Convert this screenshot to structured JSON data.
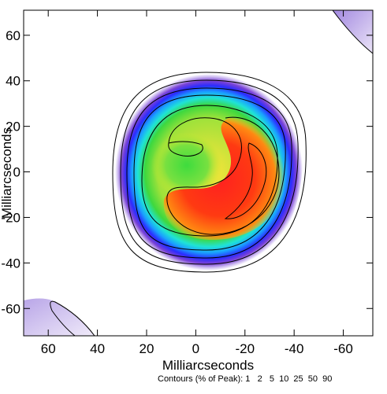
{
  "chart_data": {
    "type": "heatmap",
    "xlabel": "Milliarcseconds",
    "ylabel": "Milliarcseconds",
    "xlim": [
      70,
      -72
    ],
    "ylim": [
      -72,
      71
    ],
    "x_ticks": [
      60,
      40,
      20,
      0,
      -20,
      -40,
      -60
    ],
    "y_ticks": [
      60,
      40,
      20,
      0,
      -20,
      -40,
      -60
    ],
    "x_tick_labels": [
      "60",
      "40",
      "20",
      "0",
      "-20",
      "-40",
      "-60"
    ],
    "y_tick_labels": [
      "60",
      "40",
      "20",
      "0",
      "-20",
      "-40",
      "-60"
    ],
    "contours_label": "Contours (% of Peak):",
    "contour_levels": [
      1,
      2,
      5,
      10,
      25,
      50,
      90
    ],
    "contour_levels_text": "1   2   5  10  25  50  90",
    "colorscale": [
      "#7a3fd0",
      "#2f2fff",
      "#1f9cff",
      "#1fe0e0",
      "#40e040",
      "#f8f020",
      "#ff8a10",
      "#ff1f1f"
    ],
    "intensity_profile": {
      "center_mas": [
        -2,
        -3
      ],
      "peak_region_center_mas": [
        -15,
        -5
      ],
      "outer_radius_mas": 40
    }
  }
}
